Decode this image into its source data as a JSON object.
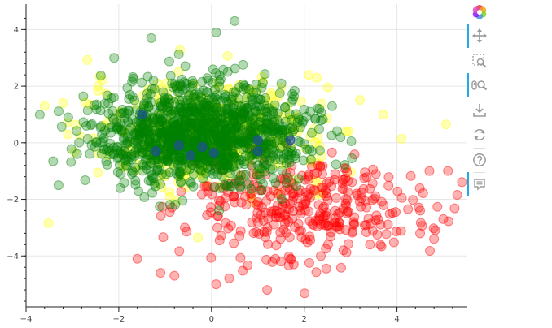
{
  "chart_data": {
    "type": "scatter",
    "xlim": [
      -4,
      5.5
    ],
    "ylim": [
      -5.8,
      4.9
    ],
    "x_ticks": [
      -4,
      -2,
      0,
      2,
      4
    ],
    "y_ticks": [
      -4,
      -2,
      0,
      2,
      4
    ],
    "x_tick_labels": [
      "−4",
      "−2",
      "0",
      "2",
      "4"
    ],
    "y_tick_labels": [
      "−4",
      "−2",
      "0",
      "2",
      "4"
    ],
    "grid": true,
    "series": [
      {
        "color": "#ffff00",
        "alpha": 0.3,
        "size": "10",
        "count": 400,
        "center": [
          0.0,
          0.3
        ],
        "spread": [
          1.3,
          0.9
        ],
        "values": [
          [
            -3.6,
            1.3
          ],
          [
            -3.2,
            1.4
          ],
          [
            3.7,
            1.0
          ],
          [
            2.1,
            2.4
          ],
          [
            2.9,
            0.4
          ],
          [
            0.9,
            -2.1
          ],
          [
            1.8,
            -1.3
          ],
          [
            -3.1,
            0.3
          ]
        ]
      },
      {
        "color": "#ff0000",
        "alpha": 0.3,
        "size": "10",
        "count": 350,
        "center": [
          2.0,
          -2.3
        ],
        "spread": [
          1.25,
          0.95
        ],
        "values": [
          [
            5.1,
            -1.0
          ],
          [
            4.7,
            -1.0
          ],
          [
            4.5,
            -3.2
          ],
          [
            1.7,
            -4.1
          ],
          [
            1.2,
            -5.2
          ],
          [
            0.1,
            -5.0
          ],
          [
            -0.8,
            -4.7
          ],
          [
            -1.6,
            -4.1
          ],
          [
            -1.1,
            -4.6
          ],
          [
            4.8,
            -3.4
          ],
          [
            5.0,
            -2.7
          ]
        ]
      },
      {
        "color": "#008000",
        "alpha": 0.3,
        "size": "10",
        "count": 1300,
        "center": [
          -0.2,
          0.3
        ],
        "spread": [
          1.1,
          0.85
        ],
        "values": [
          [
            0.5,
            4.3
          ],
          [
            0.1,
            3.9
          ],
          [
            -1.3,
            3.7
          ],
          [
            -2.1,
            3.0
          ],
          [
            -3.3,
            -1.5
          ],
          [
            -2.7,
            0.6
          ],
          [
            -2.9,
            -0.4
          ]
        ]
      },
      {
        "color": "#1f4e9c",
        "alpha": 0.65,
        "size": "10",
        "values": [
          [
            -1.5,
            1.0
          ],
          [
            -1.2,
            -0.3
          ],
          [
            -0.7,
            -0.1
          ],
          [
            -0.45,
            -0.45
          ],
          [
            -0.2,
            -0.15
          ],
          [
            0.05,
            -0.35
          ],
          [
            1.0,
            0.1
          ],
          [
            1.0,
            -0.3
          ],
          [
            1.7,
            0.1
          ]
        ]
      }
    ]
  },
  "toolbar": {
    "tools": [
      {
        "icon": "bokeh-logo-icon",
        "active": false
      },
      {
        "icon": "pan-icon",
        "active": true
      },
      {
        "icon": "box-zoom-icon",
        "active": false
      },
      {
        "icon": "wheel-zoom-icon",
        "active": true
      },
      {
        "icon": "save-icon",
        "active": false
      },
      {
        "icon": "reset-icon",
        "active": false
      },
      {
        "icon": "help-icon",
        "active": false
      },
      {
        "icon": "hover-icon",
        "active": true
      }
    ]
  }
}
